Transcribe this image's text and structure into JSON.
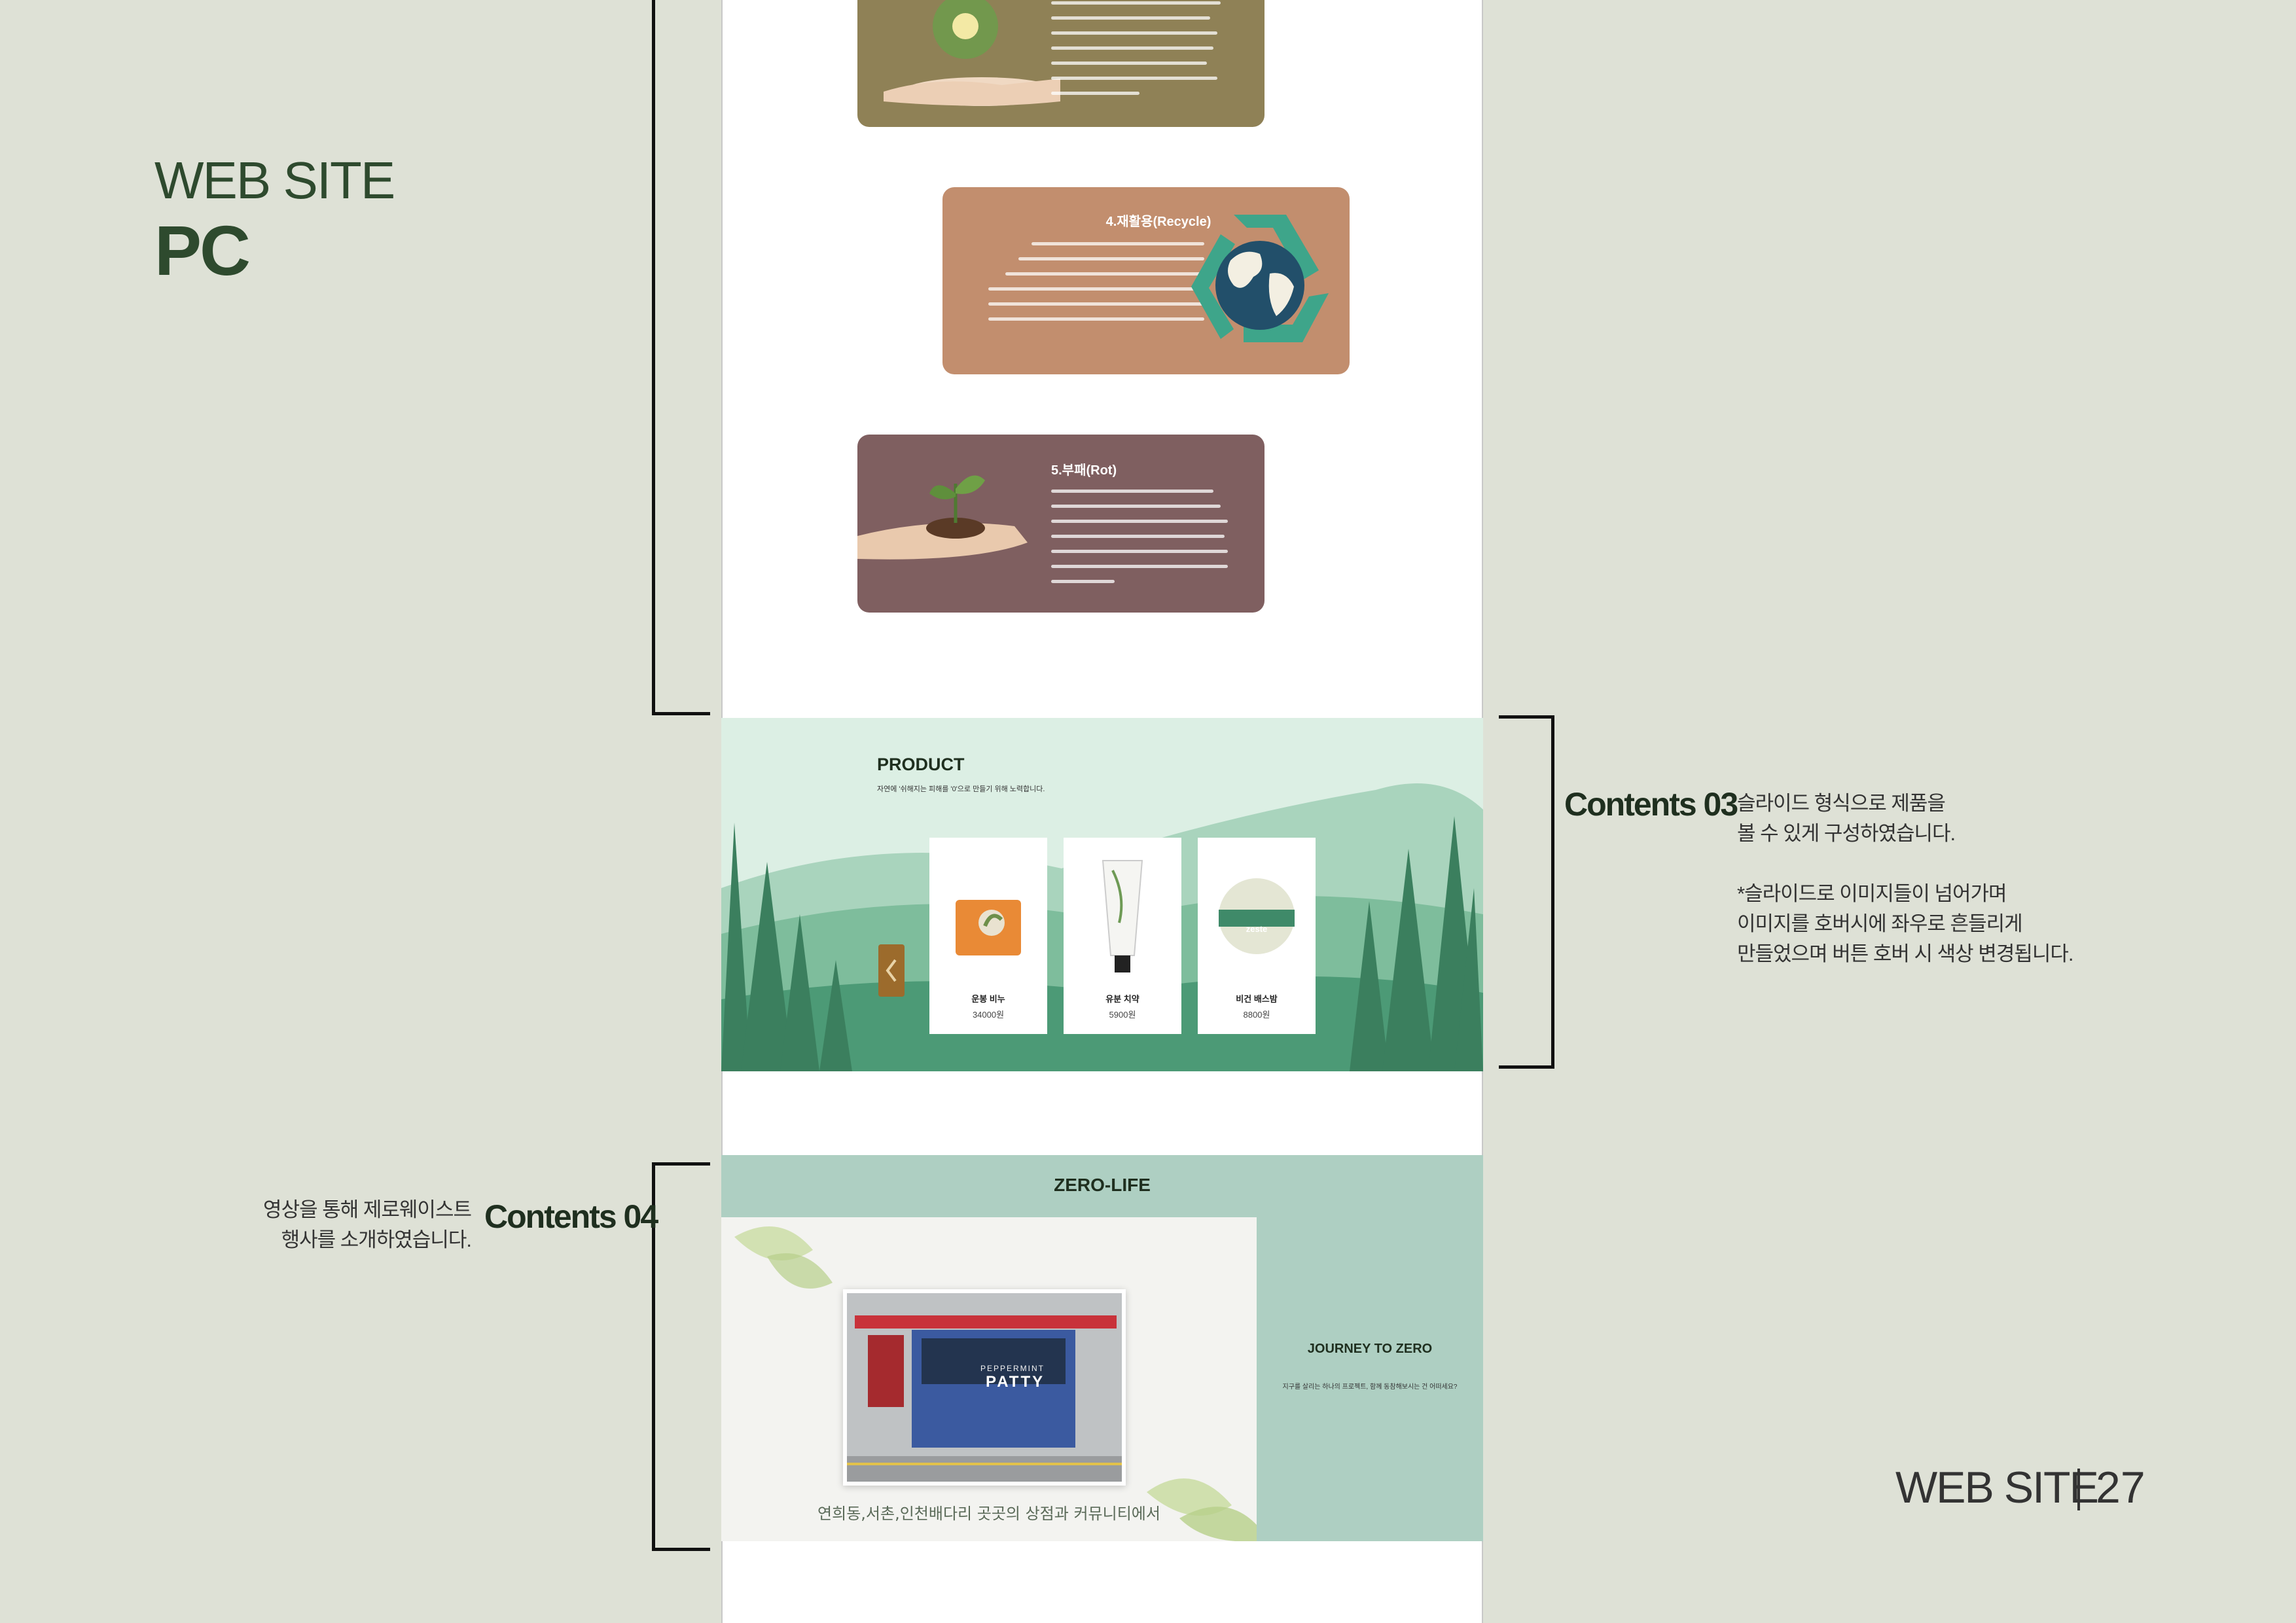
{
  "header": {
    "title": "WEB SITE",
    "subtitle": "PC"
  },
  "footer": {
    "label": "WEB SITE",
    "page": "27"
  },
  "colors": {
    "background": "#dee1d6",
    "accent": "#2e4a2e",
    "card3": "#8f8156",
    "card4": "#c28e6e",
    "card5": "#7f5f60",
    "zero_bg": "#aecfc2"
  },
  "cards": [
    {
      "title": "4.재활용(Recycle)",
      "icon": "recycle-earth-icon"
    },
    {
      "title": "5.부패(Rot)",
      "icon": "sprout-hand-icon"
    }
  ],
  "product": {
    "title": "PRODUCT",
    "subtitle": "자연에 '쉬해지는 피해를 '0'으로 만들기 위해 노력합니다.",
    "items": [
      {
        "name": "운봉 비누",
        "price": "34000원",
        "icon": "soap-icon"
      },
      {
        "name": "유분 치약",
        "price": "5900원",
        "icon": "toothpaste-icon"
      },
      {
        "name": "비건 배스밤",
        "price": "8800원",
        "icon": "bathbomb-icon",
        "label": "zeste"
      }
    ]
  },
  "contents03": {
    "title": "Contents 03",
    "lines": [
      "슬라이드 형식으로 제품을",
      "볼 수 있게 구성하였습니다.",
      "",
      "*슬라이드로 이미지들이 넘어가며",
      "이미지를 호버시에 좌우로 흔들리게",
      "만들었으며 버튼 호버 시 색상 변경됩니다."
    ]
  },
  "contents04": {
    "title": "Contents 04",
    "lines": [
      "영상을 통해 제로웨이스트",
      "행사를 소개하였습니다."
    ]
  },
  "zero": {
    "title": "ZERO-LIFE",
    "caption": "연희동,서촌,인천배다리 곳곳의 상점과 커뮤니티에서",
    "side_title": "JOURNEY TO ZERO",
    "side_text": "지구를 살리는 하나의 프로젝트, 함께 동참해보시는 건 어떠세요?",
    "shop_sign": "PATTY",
    "shop_sign_small": "PEPPERMINT"
  }
}
